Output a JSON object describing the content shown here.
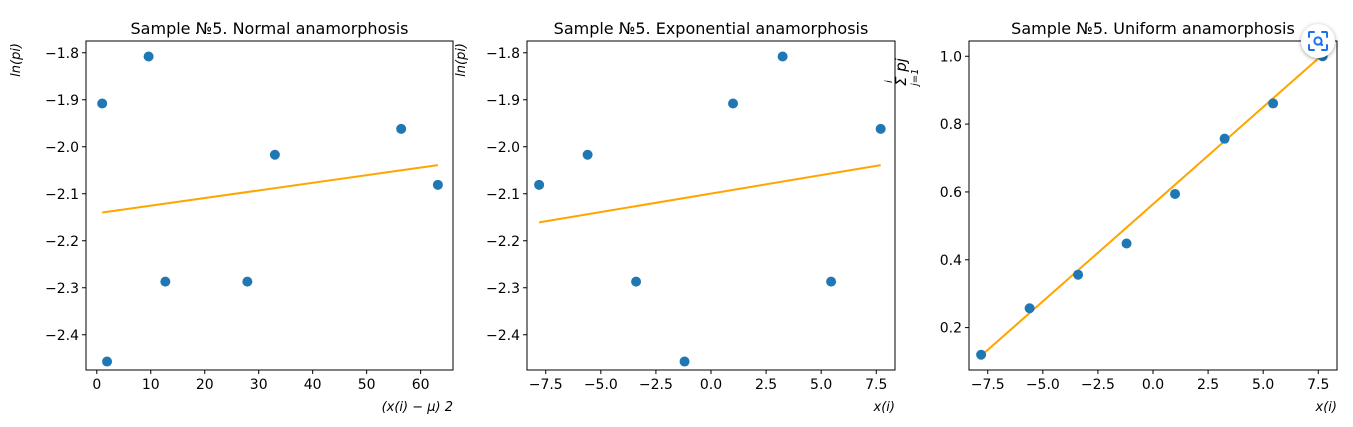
{
  "colors": {
    "point": "#1f77b4",
    "line": "#ffa500",
    "axis": "#000000",
    "lens_accent": "#1a73e8"
  },
  "overlay": {
    "icon": "lens-search-icon"
  },
  "chart_data": [
    {
      "type": "scatter",
      "title": "Sample №5. Normal anamorphosis",
      "xlabel": "(x(i) − μ) 2",
      "ylabel": "ln(pi)",
      "xlim": [
        -2,
        66
      ],
      "ylim": [
        -2.475,
        -1.775
      ],
      "xticks": [
        0,
        10,
        20,
        30,
        40,
        50,
        60
      ],
      "xtick_labels": [
        "0",
        "10",
        "20",
        "30",
        "40",
        "50",
        "60"
      ],
      "yticks": [
        -1.8,
        -1.9,
        -2.0,
        -2.1,
        -2.2,
        -2.3,
        -2.4
      ],
      "ytick_labels": [
        "−1.8",
        "−1.9",
        "−2.0",
        "−2.1",
        "−2.2",
        "−2.3",
        "−2.4"
      ],
      "grid": false,
      "points": {
        "x": [
          1.0,
          1.9,
          9.6,
          12.7,
          27.9,
          33.0,
          56.4,
          63.2
        ],
        "y": [
          -1.908,
          -2.457,
          -1.808,
          -2.287,
          -2.287,
          -2.017,
          -1.962,
          -2.081
        ]
      },
      "fit_line": {
        "x": [
          1.0,
          63.2
        ],
        "y": [
          -2.14,
          -2.039
        ]
      }
    },
    {
      "type": "scatter",
      "title": "Sample №5. Exponential anamorphosis",
      "xlabel": "x(i)",
      "ylabel": "ln(pi)",
      "xlim": [
        -8.35,
        8.35
      ],
      "ylim": [
        -2.475,
        -1.775
      ],
      "xticks": [
        -7.5,
        -5.0,
        -2.5,
        0.0,
        2.5,
        5.0,
        7.5
      ],
      "xtick_labels": [
        "−7.5",
        "−5.0",
        "−2.5",
        "0.0",
        "2.5",
        "5.0",
        "7.5"
      ],
      "yticks": [
        -1.8,
        -1.9,
        -2.0,
        -2.1,
        -2.2,
        -2.3,
        -2.4
      ],
      "ytick_labels": [
        "−1.8",
        "−1.9",
        "−2.0",
        "−2.1",
        "−2.2",
        "−2.3",
        "−2.4"
      ],
      "grid": false,
      "points": {
        "x": [
          -7.8,
          -5.6,
          -3.4,
          -1.2,
          1.0,
          3.25,
          5.45,
          7.7
        ],
        "y": [
          -2.081,
          -2.017,
          -2.287,
          -2.457,
          -1.908,
          -1.808,
          -2.287,
          -1.962
        ]
      },
      "fit_line": {
        "x": [
          -7.8,
          7.7
        ],
        "y": [
          -2.161,
          -2.039
        ]
      }
    },
    {
      "type": "scatter",
      "title": "Sample №5. Uniform anamorphosis",
      "xlabel": "x(i)",
      "ylabel": "Σ pj",
      "ylabel_top": "i",
      "ylabel_bottom": "j=1",
      "xlim": [
        -8.35,
        8.35
      ],
      "ylim": [
        0.075,
        1.045
      ],
      "xticks": [
        -7.5,
        -5.0,
        -2.5,
        0.0,
        2.5,
        5.0,
        7.5
      ],
      "xtick_labels": [
        "−7.5",
        "−5.0",
        "−2.5",
        "0.0",
        "2.5",
        "5.0",
        "7.5"
      ],
      "yticks": [
        0.2,
        0.4,
        0.6,
        0.8,
        1.0
      ],
      "ytick_labels": [
        "0.2",
        "0.4",
        "0.6",
        "0.8",
        "1.0"
      ],
      "grid": false,
      "points": {
        "x": [
          -7.8,
          -5.6,
          -3.4,
          -1.2,
          1.0,
          3.25,
          5.45,
          7.7
        ],
        "y": [
          0.12,
          0.257,
          0.356,
          0.448,
          0.594,
          0.757,
          0.861,
          1.0
        ]
      },
      "fit_line": {
        "x": [
          -7.8,
          7.7
        ],
        "y": [
          0.117,
          1.005
        ]
      }
    }
  ]
}
